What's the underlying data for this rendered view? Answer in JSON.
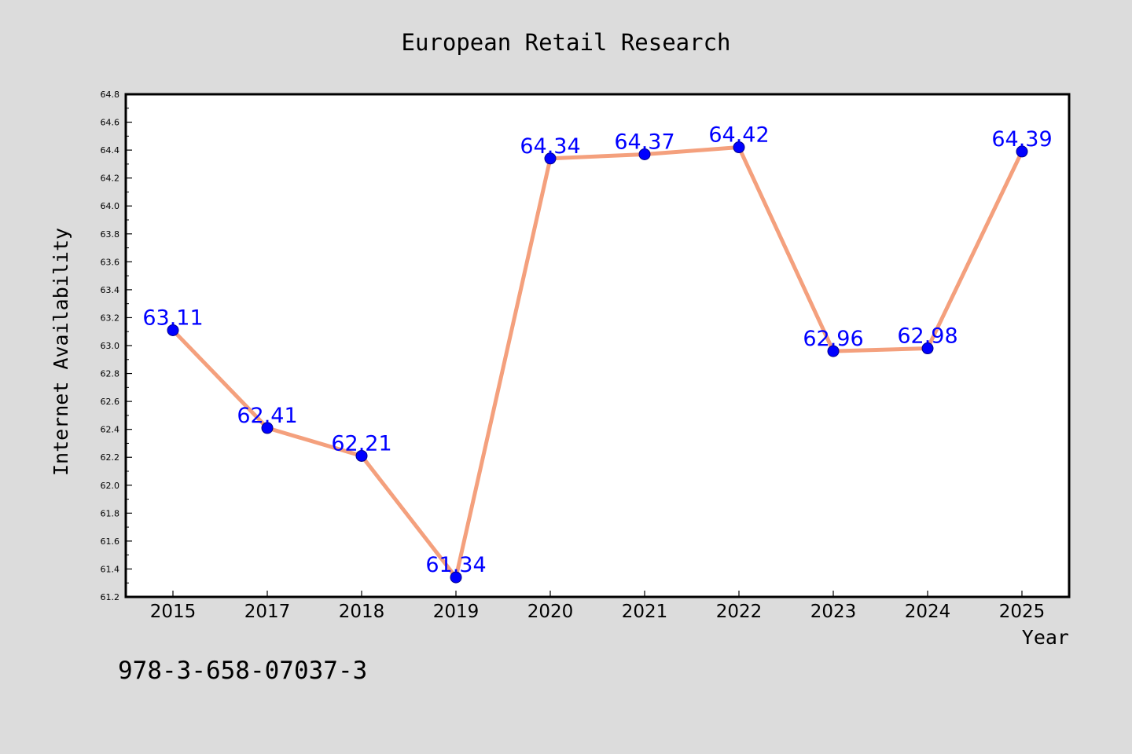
{
  "chart_data": {
    "type": "line",
    "title": "European Retail Research",
    "xlabel": "Year",
    "ylabel": "Internet Availability",
    "categories": [
      "2015",
      "2017",
      "2018",
      "2019",
      "2020",
      "2021",
      "2022",
      "2023",
      "2024",
      "2025"
    ],
    "series": [
      {
        "values": [
          63.11,
          62.41,
          62.21,
          61.34,
          64.34,
          64.37,
          64.42,
          62.96,
          62.98,
          64.39
        ]
      }
    ],
    "data_labels": [
      "63.11",
      "62.41",
      "62.21",
      "61.34",
      "64.34",
      "64.37",
      "64.42",
      "62.96",
      "62.98",
      "64.39"
    ],
    "ylim": [
      61.2,
      64.8
    ],
    "yticks": [
      "61.2",
      "61.4",
      "61.6",
      "61.8",
      "62.0",
      "62.2",
      "62.4",
      "62.6",
      "62.8",
      "63.0",
      "63.2",
      "63.4",
      "63.6",
      "63.8",
      "64.0",
      "64.2",
      "64.4",
      "64.6",
      "64.8"
    ],
    "grid": false,
    "legend": "none"
  },
  "footer_text": "978-3-658-07037-3",
  "colors": {
    "background": "#dcdcdc",
    "plot_background": "#ffffff",
    "line": "#f4a07d",
    "marker": "#0000ff",
    "data_label": "#0000ff",
    "axis": "#000000"
  }
}
